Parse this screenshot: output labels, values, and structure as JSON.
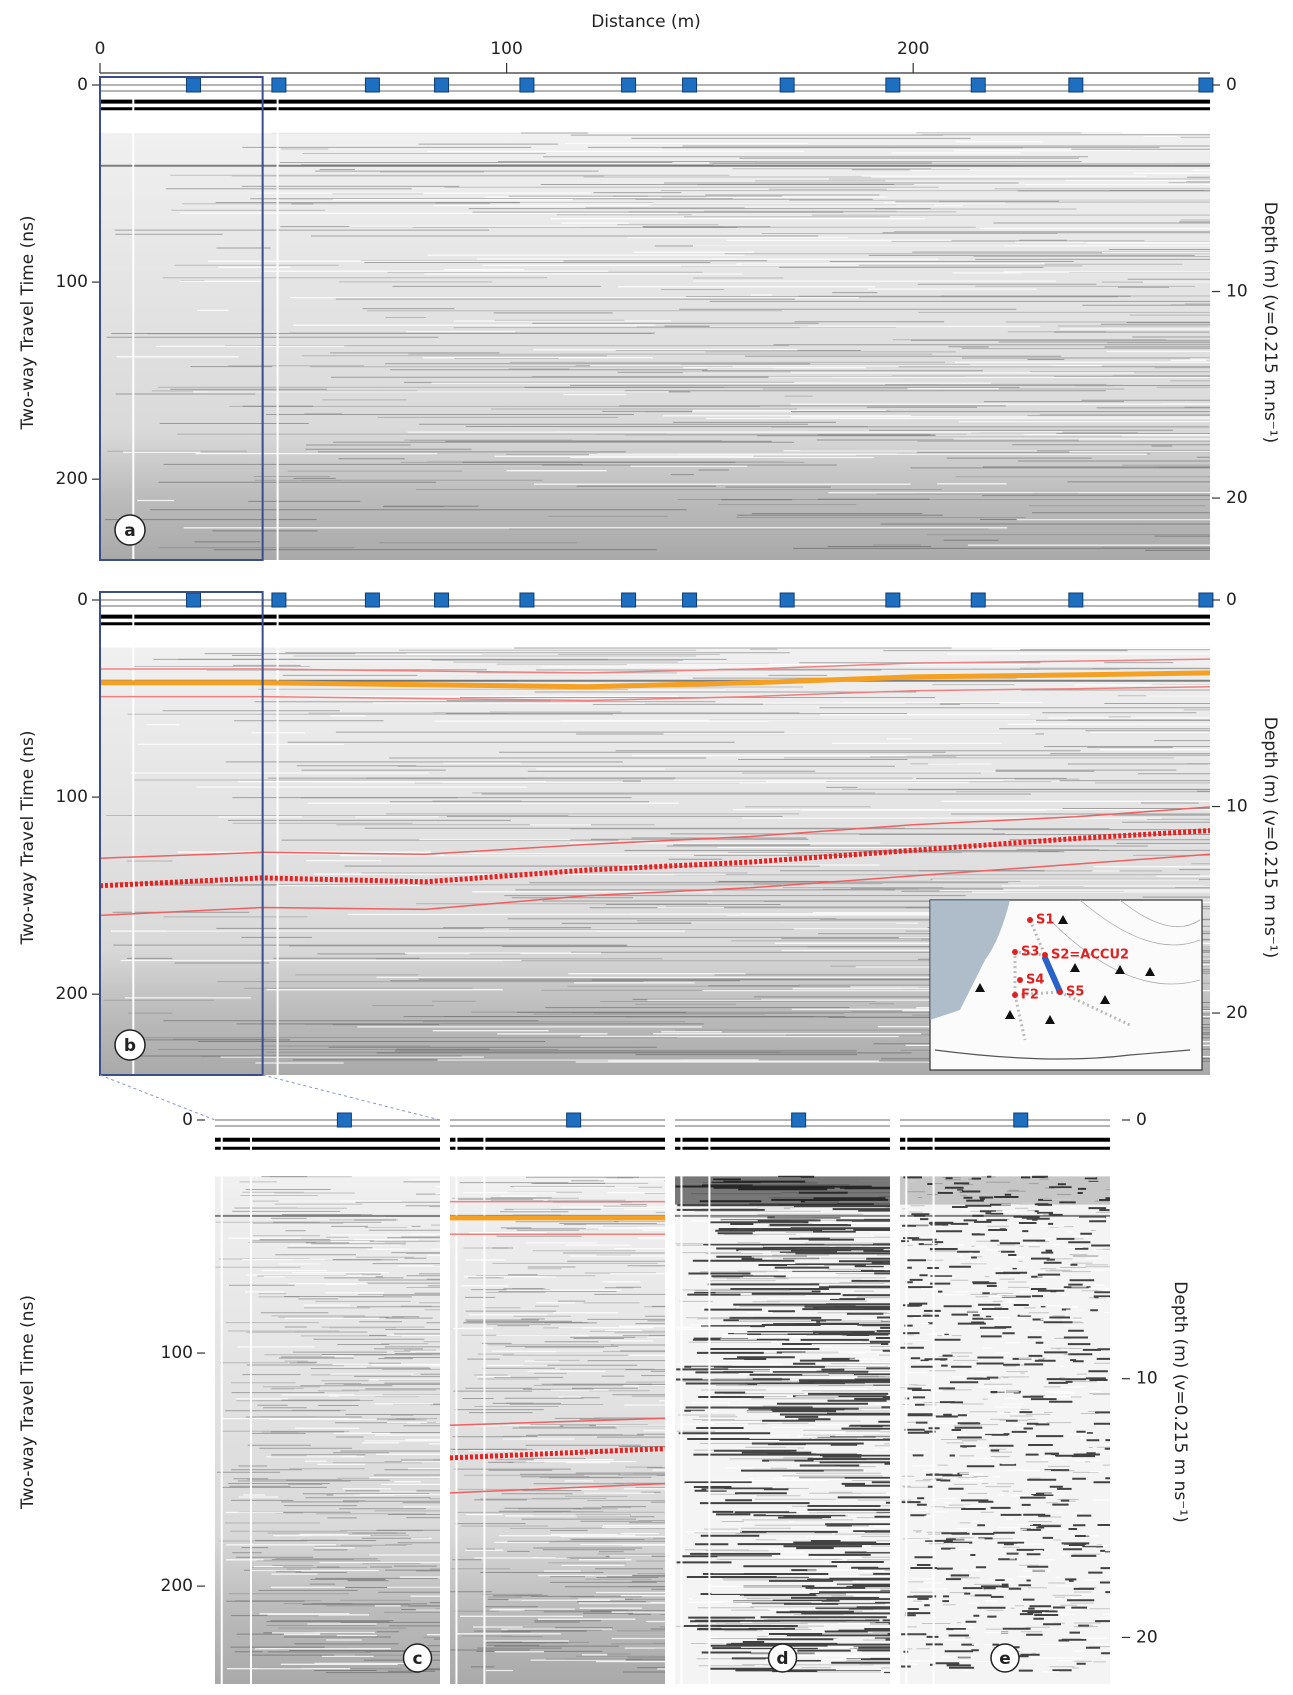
{
  "chart_data": [
    {
      "type": "radargram",
      "xlabel": "Distance (m)",
      "ylabel": "Two-way Travel Time  (ns)",
      "y2label": "Depth (m) (v=0.215 m.ns⁻¹)",
      "xlim": [
        0,
        273
      ],
      "xticks": [
        0,
        100,
        200
      ],
      "ylim": [
        0,
        241
      ],
      "yticks": [
        0,
        100,
        200
      ],
      "y2lim": [
        0,
        23
      ],
      "y2ticks": [
        0,
        10,
        20
      ],
      "markers_x": [
        23,
        44,
        67,
        84,
        105,
        130,
        145,
        169,
        195,
        216,
        240,
        272
      ],
      "panel_label": "a"
    },
    {
      "type": "radargram",
      "ylabel": "Two-way Travel Time  (ns)",
      "y2label": "Depth (m) (v=0.215 m ns⁻¹)",
      "xlim": [
        0,
        273
      ],
      "ylim": [
        0,
        241
      ],
      "yticks": [
        0,
        100,
        200
      ],
      "y2lim": [
        0,
        23
      ],
      "y2ticks": [
        0,
        10,
        20
      ],
      "markers_x": [
        23,
        44,
        67,
        84,
        105,
        130,
        145,
        169,
        195,
        216,
        240,
        272
      ],
      "panel_label": "b",
      "horizon_x": [
        0,
        40,
        80,
        120,
        160,
        200,
        240,
        273
      ],
      "horizons": [
        {
          "color": "#f08080",
          "values": [
            35,
            35,
            36,
            37,
            35,
            32,
            31,
            30
          ]
        },
        {
          "color": "#f08080",
          "values": [
            49,
            49,
            50,
            51,
            49,
            46,
            45,
            44
          ]
        },
        {
          "color": "#f5a020",
          "values": [
            42,
            42,
            43,
            44,
            42,
            39,
            38,
            37
          ]
        },
        {
          "color": "#f06060",
          "values": [
            131,
            128,
            129,
            124,
            120,
            114,
            110,
            105
          ]
        },
        {
          "color": "#f06060",
          "values": [
            160,
            156,
            157,
            150,
            146,
            140,
            134,
            129
          ]
        },
        {
          "color": "#e82020",
          "values": [
            145,
            141,
            143,
            137,
            133,
            127,
            121,
            117
          ]
        }
      ],
      "inset_labels": [
        "S1",
        "S3",
        "S2=ACCU2",
        "S4",
        "F2",
        "S5"
      ]
    },
    {
      "type": "radargram",
      "ylabel": "Two-way Travel Time  (ns)",
      "y2label": "Depth (m) (v=0.215 m ns⁻¹)",
      "xlim": [
        0,
        40
      ],
      "ylim": [
        0,
        242
      ],
      "yticks": [
        0,
        100,
        200
      ],
      "y2lim": [
        0,
        21.8
      ],
      "y2ticks": [
        0,
        10,
        20
      ],
      "markers_x": [
        23
      ],
      "panel_labels": [
        "c",
        "d",
        "e"
      ]
    }
  ]
}
